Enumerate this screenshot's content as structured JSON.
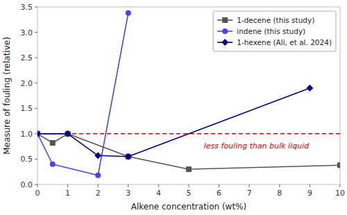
{
  "chart_data": {
    "type": "line",
    "x_label": "Alkene concentration (wt%)",
    "y_label": "Measure of fouling (relative)",
    "series": [
      {
        "name": "1-decene (this study)",
        "color": "#555555",
        "marker": "square",
        "x": [
          0,
          0.5,
          1,
          3,
          5,
          10
        ],
        "values": [
          1.0,
          0.82,
          1.0,
          0.55,
          0.3,
          0.38
        ]
      },
      {
        "name": "indene (this study)",
        "color": "#4444ff",
        "marker": "circle",
        "x": [
          0,
          0.5,
          2,
          3
        ],
        "values": [
          1.0,
          0.4,
          0.18,
          3.38
        ]
      },
      {
        "name": "1-hexene (Ali, et al. 2024)",
        "color": "#00008b",
        "marker": "diamond",
        "x": [
          0,
          1,
          2,
          3,
          9
        ],
        "values": [
          1.0,
          1.0,
          0.57,
          0.55,
          1.9
        ]
      }
    ],
    "reference_line": {
      "y": 1.0,
      "color": "#dd0000",
      "line_style": "dashed"
    },
    "annotations": [
      {
        "text": "less fouling than bulk liquid",
        "x": 5.5,
        "y": 0.86,
        "color": "#dd0000"
      }
    ],
    "xlim": [
      0,
      10
    ],
    "ylim": [
      0.0,
      3.5
    ],
    "xticks": [
      0,
      1,
      2,
      3,
      4,
      5,
      6,
      7,
      8,
      9,
      10
    ],
    "yticks": [
      {
        "value": 0.0,
        "label": "0.0"
      },
      0.5,
      {
        "value": 1.0,
        "label": "1.0"
      },
      1.5,
      {
        "value": 2.0,
        "label": "2.0"
      },
      2.5,
      {
        "value": 3.0,
        "label": "3.0"
      },
      3.5
    ],
    "legend": "upper right"
  }
}
